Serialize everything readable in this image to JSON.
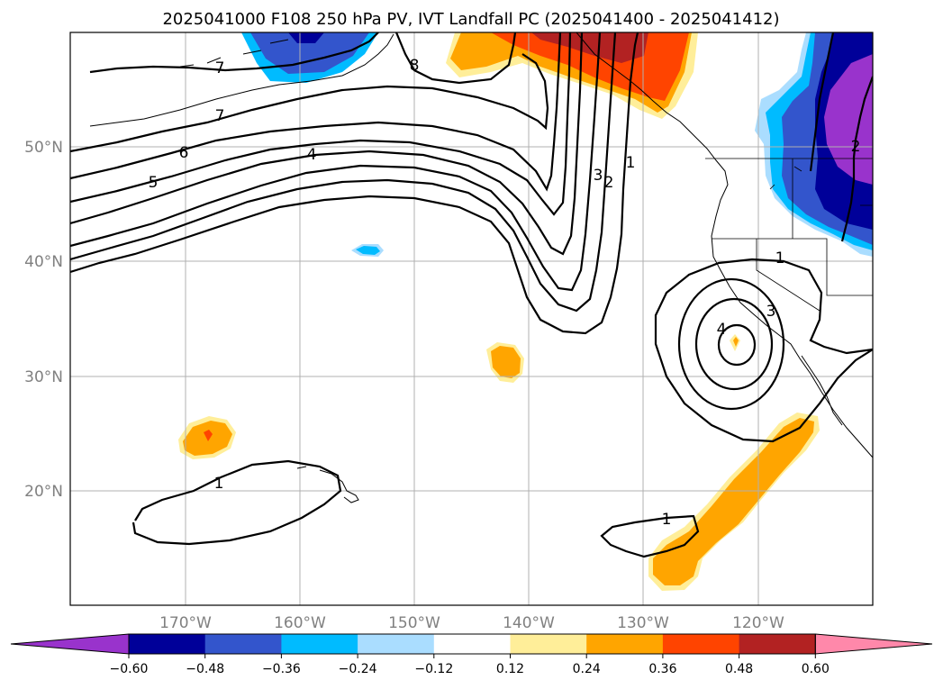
{
  "title": "2025041000 F108 250 hPa PV, IVT Landfall PC (2025041400 - 2025041412)",
  "map": {
    "lon_labels": [
      "170°W",
      "160°W",
      "150°W",
      "140°W",
      "130°W",
      "120°W"
    ],
    "lat_labels": [
      "50°N",
      "40°N",
      "30°N",
      "20°N"
    ],
    "contour_labels": [
      "7",
      "7",
      "6",
      "5",
      "4",
      "8",
      "3",
      "2",
      "1",
      "1",
      "3",
      "4",
      "1",
      "1",
      "2"
    ]
  },
  "colorbar": {
    "ticks": [
      "−0.60",
      "−0.48",
      "−0.36",
      "−0.24",
      "−0.12",
      "0.12",
      "0.24",
      "0.36",
      "0.48",
      "0.60"
    ],
    "colors": [
      "#9933cc",
      "#000099",
      "#3355cc",
      "#00bbff",
      "#aaddff",
      "#ffffff",
      "#ffee99",
      "#ffa500",
      "#ff4400",
      "#b22222",
      "#ff88aa"
    ]
  }
}
